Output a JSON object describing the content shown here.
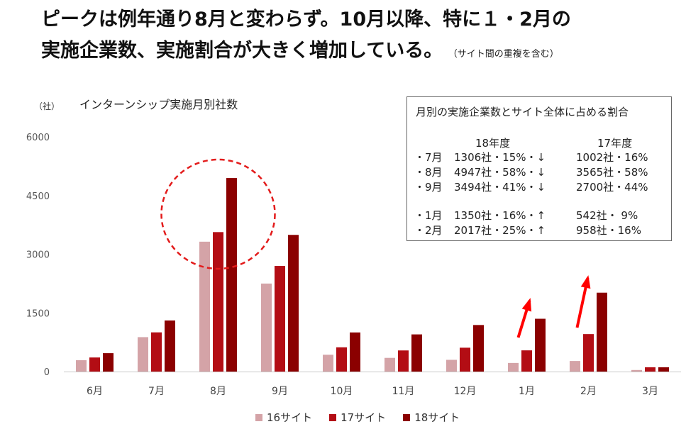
{
  "headline": {
    "line1": "ピークは例年通り8月と変わらず。10月以降、特に１・2月の",
    "line2": "実施企業数、実施割合が大きく増加している。",
    "note": "（サイト間の重複を含む）"
  },
  "colors": {
    "s16": "#d4a3a7",
    "s17": "#b30d14",
    "s18": "#8b0000",
    "circle": "#e31b1b",
    "arrow": "#ff0000"
  },
  "chart_data": {
    "type": "bar",
    "title": "インターンシップ実施月別社数",
    "unit_label": "（社）",
    "categories": [
      "6月",
      "7月",
      "8月",
      "9月",
      "10月",
      "11月",
      "12月",
      "1月",
      "2月",
      "3月"
    ],
    "series": [
      {
        "name": "16サイト",
        "values": [
          290,
          880,
          3320,
          2250,
          430,
          350,
          300,
          220,
          270,
          40
        ]
      },
      {
        "name": "17サイト",
        "values": [
          360,
          1002,
          3565,
          2700,
          620,
          540,
          610,
          542,
          958,
          110
        ]
      },
      {
        "name": "18サイト",
        "values": [
          470,
          1306,
          4947,
          3494,
          1000,
          950,
          1190,
          1350,
          2017,
          110
        ]
      }
    ],
    "ylim": [
      0,
      6000
    ],
    "yticks": [
      "0",
      "1500",
      "3000",
      "4500",
      "6000"
    ],
    "grid": false,
    "legend_position": "bottom"
  },
  "infobox": {
    "title": "月別の実施企業数とサイト全体に占める割合",
    "header_18": "18年度",
    "header_17": "17年度",
    "rows": [
      {
        "month": "・7月",
        "y18": "1306社・15%・↓",
        "y17": "1002社・16%"
      },
      {
        "month": "・8月",
        "y18": "4947社・58%・↓",
        "y17": "3565社・58%"
      },
      {
        "month": "・9月",
        "y18": "3494社・41%・↓",
        "y17": "2700社・44%"
      },
      {
        "month": "・1月",
        "y18": "1350社・16%・↑",
        "y17": "542社・ 9%"
      },
      {
        "month": "・2月",
        "y18": "2017社・25%・↑",
        "y17": "958社・16%"
      }
    ]
  }
}
